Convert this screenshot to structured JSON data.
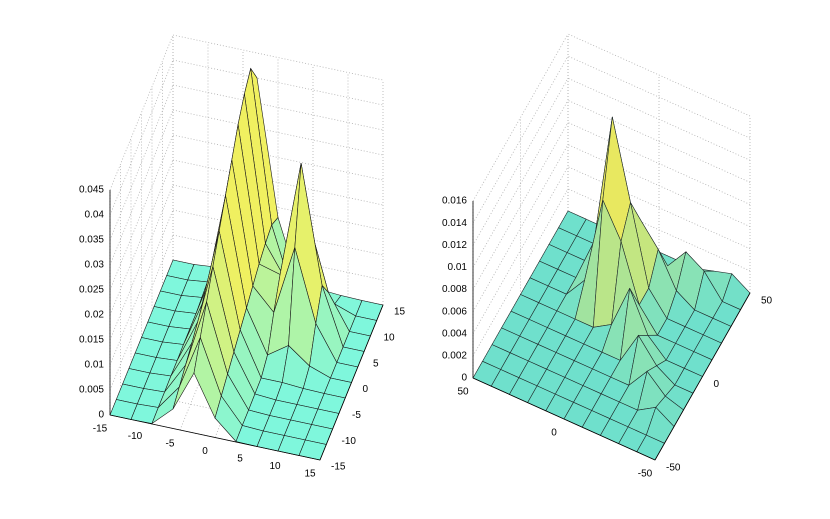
{
  "chart_data": [
    {
      "type": "surface",
      "x": [
        -15,
        -12,
        -9,
        -6,
        -3,
        0,
        3,
        6,
        9,
        12,
        15
      ],
      "y": [
        -15,
        -12,
        -9,
        -6,
        -3,
        0,
        3,
        6,
        9,
        12,
        15
      ],
      "z": [
        [
          0,
          0,
          0.0001,
          0.0039,
          0.012,
          0.0039,
          0.0001,
          0,
          0,
          0,
          0
        ],
        [
          0,
          0,
          0.0002,
          0.0052,
          0.016,
          0.0052,
          0.0002,
          0,
          0,
          0,
          0
        ],
        [
          0,
          0,
          0.0002,
          0.0065,
          0.02,
          0.0065,
          0.0002,
          0,
          0,
          0,
          0
        ],
        [
          0,
          0,
          0.0003,
          0.0078,
          0.024,
          0.0078,
          0.0003,
          0,
          0,
          0,
          0
        ],
        [
          0,
          0,
          0.0003,
          0.0091,
          0.028,
          0.0091,
          0.0004,
          0.0004,
          0.0001,
          0,
          0
        ],
        [
          0,
          0,
          0.0004,
          0.0104,
          0.032,
          0.0104,
          0.0019,
          0.0047,
          0.0015,
          0,
          0
        ],
        [
          0,
          0,
          0.0004,
          0.0117,
          0.036,
          0.0117,
          0.0073,
          0.0212,
          0.0069,
          0,
          0
        ],
        [
          0,
          0,
          0.0004,
          0.013,
          0.04,
          0.013,
          0.0118,
          0.035,
          0.0114,
          0,
          0
        ],
        [
          0,
          0,
          0.0005,
          0.014,
          0.043,
          0.014,
          0.0074,
          0.0212,
          0.0069,
          0,
          0
        ],
        [
          0,
          0,
          0.0005,
          0.0146,
          0.045,
          0.0146,
          0.002,
          0.0047,
          0.0015,
          0,
          0
        ],
        [
          0,
          0,
          0.0004,
          0.013,
          0.04,
          0.013,
          0.0005,
          0.0004,
          0.0001,
          0,
          0
        ]
      ],
      "xlim": [
        -15,
        15
      ],
      "ylim": [
        -15,
        15
      ],
      "zlim": [
        0,
        0.045
      ],
      "xticks": [
        -15,
        -10,
        -5,
        0,
        5,
        10,
        15
      ],
      "yticks": [
        -15,
        -10,
        -5,
        0,
        5,
        10,
        15
      ],
      "zticks": [
        0,
        0.005,
        0.01,
        0.015,
        0.02,
        0.025,
        0.03,
        0.035,
        0.04,
        0.045
      ],
      "grid": true,
      "colormap": [
        "#7ff7dc",
        "#f0f060"
      ],
      "edgecolor": "#1a1a1a"
    },
    {
      "type": "surface",
      "x": [
        -50,
        -40,
        -30,
        -20,
        -10,
        0,
        10,
        20,
        30,
        40,
        50
      ],
      "y": [
        -50,
        -40,
        -30,
        -20,
        -10,
        0,
        10,
        20,
        30,
        40,
        50
      ],
      "z": [
        [
          0,
          0,
          0,
          0,
          0,
          0,
          0,
          0,
          0,
          0,
          0
        ],
        [
          0,
          0,
          0,
          0,
          0,
          0,
          0,
          0,
          0,
          0,
          0
        ],
        [
          0,
          0.001,
          0,
          0,
          0,
          0,
          0,
          0,
          0,
          0,
          0
        ],
        [
          0,
          0.0005,
          0.002,
          0,
          0,
          0,
          0,
          0,
          0,
          0,
          0
        ],
        [
          0,
          0,
          0.001,
          0.003,
          0,
          0,
          0,
          0,
          0,
          0,
          0
        ],
        [
          0,
          0,
          0,
          0.0015,
          0.005,
          0.001,
          0,
          0,
          0,
          0,
          0
        ],
        [
          0,
          0,
          0,
          0,
          0.002,
          0.007,
          0.01,
          0.002,
          0,
          0,
          0
        ],
        [
          0,
          0,
          0,
          0,
          0.002,
          0.009,
          0.016,
          0.004,
          0,
          0,
          0
        ],
        [
          0,
          0,
          0,
          0.001,
          0.004,
          0.006,
          0.005,
          0,
          0,
          0,
          0
        ],
        [
          0,
          0,
          0.002,
          0.003,
          0.001,
          0,
          0,
          0,
          0,
          0,
          0
        ],
        [
          0,
          0.001,
          0.0005,
          0,
          0,
          0,
          0,
          0,
          0,
          0,
          0
        ]
      ],
      "xlim": [
        -50,
        50
      ],
      "ylim": [
        -50,
        50
      ],
      "zlim": [
        0,
        0.016
      ],
      "xticks": [
        -50,
        0,
        50
      ],
      "yticks": [
        -50,
        0,
        50
      ],
      "zticks": [
        0,
        0.002,
        0.004,
        0.006,
        0.008,
        0.01,
        0.012,
        0.014,
        0.016
      ],
      "grid": true,
      "colormap": [
        "#6fe0cc",
        "#e8e860"
      ],
      "edgecolor": "#1f2a2a"
    }
  ]
}
